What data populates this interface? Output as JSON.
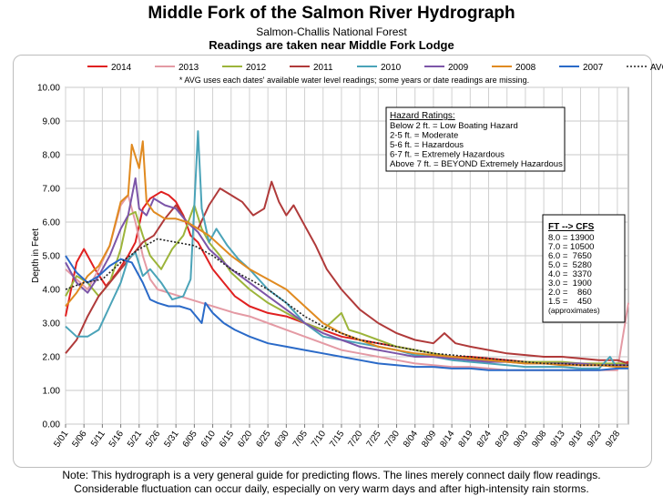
{
  "header": {
    "title": "Middle Fork of the Salmon River Hydrograph",
    "subtitle": "Salmon-Challis National Forest",
    "subtitle2": "Readings are taken near Middle Fork Lodge"
  },
  "notes": {
    "line1": "Note: This hydrograph is a very general guide for predicting flows. The lines merely connect daily flow readings.",
    "line2": "Considerable fluctuation can occur daily, especially on very warm days and after high-intensity rain storms."
  },
  "hazard_box": {
    "title": "Hazard Ratings:",
    "lines": [
      "Below 2 ft. = Low Boating Hazard",
      "2-5 ft. = Moderate",
      "5-6 ft. = Hazardous",
      "6-7 ft. = Extremely Hazardous",
      "Above 7 ft. = BEYOND Extremely Hazardous"
    ]
  },
  "cfs_box": {
    "title": "FT --> CFS",
    "lines": [
      "8.0 = 13900",
      "7.0 = 10500",
      "6.0 =  7650",
      "5.0 =  5280",
      "4.0 =  3370",
      "3.0 =  1900",
      "2.0 =    860",
      "1.5 =    450",
      "(approximates)"
    ]
  },
  "chart_data": {
    "type": "line",
    "ylabel": "Depth in Feet",
    "xlabel": "",
    "ylim": [
      0,
      10
    ],
    "yticks": [
      "0.00",
      "1.00",
      "2.00",
      "3.00",
      "4.00",
      "5.00",
      "6.00",
      "7.00",
      "8.00",
      "9.00",
      "10.00"
    ],
    "xticks": [
      "5/01",
      "5/06",
      "5/11",
      "5/16",
      "5/21",
      "5/26",
      "5/31",
      "6/05",
      "6/10",
      "6/15",
      "6/20",
      "6/25",
      "6/30",
      "7/05",
      "7/10",
      "7/15",
      "7/20",
      "7/25",
      "7/30",
      "8/04",
      "8/09",
      "8/14",
      "8/19",
      "8/24",
      "8/29",
      "9/03",
      "9/08",
      "9/13",
      "9/18",
      "9/23",
      "9/28"
    ],
    "xtick_days": [
      0,
      5,
      10,
      15,
      20,
      25,
      30,
      35,
      40,
      45,
      50,
      55,
      60,
      65,
      70,
      75,
      80,
      85,
      90,
      95,
      100,
      105,
      110,
      115,
      120,
      125,
      130,
      135,
      140,
      145,
      150
    ],
    "x_unit": "days since 5/01",
    "legend_note": "* AVG uses each dates' available water level readings; some years or date readings are missing.",
    "grid": true,
    "legend_position": "top",
    "series": [
      {
        "name": "2014",
        "color": "#e02020",
        "dash": false,
        "x": [
          0,
          3,
          5,
          8,
          11,
          14,
          17,
          19,
          21,
          23,
          26,
          28,
          30,
          32,
          34,
          36,
          38,
          40,
          43,
          46,
          50,
          55,
          60,
          65,
          70,
          75,
          80,
          85,
          90,
          95,
          100,
          105,
          110,
          115,
          120,
          125,
          130,
          135,
          140,
          145,
          150,
          153
        ],
        "y": [
          3.2,
          4.8,
          5.2,
          4.6,
          4.1,
          4.5,
          5.0,
          5.4,
          6.4,
          6.7,
          6.9,
          6.8,
          6.6,
          6.2,
          5.6,
          5.4,
          5.0,
          4.6,
          4.2,
          3.8,
          3.5,
          3.3,
          3.2,
          3.0,
          2.8,
          2.6,
          2.5,
          2.4,
          2.3,
          2.2,
          2.1,
          2.0,
          2.0,
          1.95,
          1.9,
          1.85,
          1.8,
          1.8,
          1.75,
          1.75,
          1.75,
          1.85
        ]
      },
      {
        "name": "2013",
        "color": "#e49aa4",
        "dash": false,
        "x": [
          0,
          3,
          6,
          9,
          12,
          15,
          17,
          19,
          21,
          23,
          25,
          28,
          31,
          34,
          37,
          40,
          43,
          46,
          50,
          55,
          60,
          65,
          70,
          75,
          80,
          85,
          90,
          95,
          100,
          105,
          110,
          115,
          120,
          125,
          130,
          135,
          140,
          145,
          150,
          153
        ],
        "y": [
          4.6,
          4.3,
          4.0,
          4.6,
          5.3,
          6.5,
          6.8,
          6.0,
          5.0,
          4.3,
          4.0,
          3.9,
          3.8,
          3.7,
          3.6,
          3.5,
          3.4,
          3.3,
          3.2,
          3.0,
          2.8,
          2.6,
          2.4,
          2.2,
          2.1,
          2.0,
          1.9,
          1.8,
          1.75,
          1.7,
          1.7,
          1.65,
          1.6,
          1.6,
          1.6,
          1.6,
          1.6,
          1.6,
          1.6,
          3.6
        ]
      },
      {
        "name": "2012",
        "color": "#9cb43a",
        "dash": false,
        "x": [
          0,
          3,
          6,
          9,
          12,
          15,
          17,
          19,
          21,
          23,
          26,
          29,
          32,
          35,
          37,
          39,
          42,
          45,
          50,
          55,
          60,
          65,
          70,
          73,
          75,
          77,
          80,
          85,
          90,
          95,
          100,
          105,
          110,
          115,
          120,
          125,
          130,
          135,
          140,
          145,
          150,
          153
        ],
        "y": [
          3.8,
          4.4,
          4.2,
          3.8,
          4.2,
          5.2,
          6.2,
          6.3,
          5.6,
          5.0,
          4.6,
          5.2,
          5.6,
          6.5,
          5.8,
          5.4,
          5.0,
          4.5,
          4.0,
          3.6,
          3.3,
          3.0,
          2.8,
          3.1,
          3.3,
          2.8,
          2.7,
          2.5,
          2.3,
          2.2,
          2.1,
          2.0,
          1.95,
          1.9,
          1.85,
          1.85,
          1.85,
          1.85,
          1.8,
          1.8,
          1.8,
          1.8
        ]
      },
      {
        "name": "2011",
        "color": "#b03a3a",
        "dash": false,
        "x": [
          0,
          3,
          6,
          9,
          12,
          15,
          18,
          21,
          24,
          27,
          30,
          33,
          36,
          39,
          42,
          45,
          48,
          51,
          54,
          56,
          58,
          60,
          62,
          65,
          68,
          71,
          75,
          80,
          85,
          90,
          95,
          100,
          103,
          106,
          110,
          115,
          120,
          125,
          130,
          135,
          140,
          145,
          150,
          153
        ],
        "y": [
          2.1,
          2.5,
          3.2,
          3.8,
          4.2,
          4.6,
          5.0,
          5.4,
          5.6,
          6.1,
          6.5,
          6.0,
          5.8,
          6.5,
          7.0,
          6.8,
          6.6,
          6.2,
          6.4,
          7.2,
          6.6,
          6.2,
          6.5,
          5.9,
          5.3,
          4.6,
          4.0,
          3.4,
          3.0,
          2.7,
          2.5,
          2.4,
          2.7,
          2.4,
          2.3,
          2.2,
          2.1,
          2.05,
          2.0,
          2.0,
          1.95,
          1.9,
          1.9,
          1.8
        ]
      },
      {
        "name": "2010",
        "color": "#4aa3b8",
        "dash": false,
        "x": [
          0,
          3,
          6,
          9,
          12,
          15,
          17,
          19,
          21,
          23,
          26,
          29,
          32,
          34,
          35,
          36,
          37,
          39,
          41,
          44,
          47,
          50,
          55,
          60,
          65,
          70,
          75,
          80,
          85,
          90,
          95,
          100,
          105,
          110,
          115,
          120,
          125,
          130,
          135,
          140,
          145,
          148,
          150,
          153
        ],
        "y": [
          2.9,
          2.6,
          2.6,
          2.8,
          3.5,
          4.2,
          4.9,
          5.1,
          4.4,
          4.6,
          4.2,
          3.7,
          3.8,
          4.3,
          6.5,
          8.7,
          6.4,
          5.4,
          5.8,
          5.3,
          4.9,
          4.6,
          4.0,
          3.6,
          3.0,
          2.6,
          2.5,
          2.4,
          2.3,
          2.2,
          2.05,
          2.0,
          1.9,
          1.85,
          1.8,
          1.75,
          1.7,
          1.7,
          1.7,
          1.65,
          1.65,
          2.0,
          1.65,
          1.7
        ]
      },
      {
        "name": "2009",
        "color": "#7c55a8",
        "dash": false,
        "x": [
          0,
          3,
          6,
          9,
          12,
          15,
          17,
          19,
          20,
          22,
          24,
          27,
          30,
          33,
          36,
          39,
          42,
          45,
          50,
          55,
          60,
          65,
          70,
          75,
          80,
          85,
          90,
          95,
          100,
          105,
          110,
          115,
          120,
          125,
          130,
          135,
          140,
          145,
          150,
          153
        ],
        "y": [
          4.8,
          4.2,
          3.9,
          4.4,
          5.0,
          5.8,
          6.2,
          7.3,
          6.4,
          6.2,
          6.7,
          6.5,
          6.4,
          6.0,
          5.7,
          5.2,
          4.9,
          4.6,
          4.2,
          3.8,
          3.4,
          3.0,
          2.7,
          2.5,
          2.3,
          2.2,
          2.1,
          2.0,
          2.0,
          1.95,
          1.9,
          1.85,
          1.85,
          1.8,
          1.8,
          1.8,
          1.8,
          1.75,
          1.75,
          1.75
        ]
      },
      {
        "name": "2008",
        "color": "#e08a20",
        "dash": false,
        "x": [
          0,
          3,
          6,
          9,
          12,
          15,
          17,
          18,
          20,
          21,
          22,
          24,
          27,
          30,
          33,
          36,
          39,
          42,
          45,
          50,
          55,
          60,
          65,
          70,
          75,
          80,
          85,
          90,
          95,
          100,
          105,
          110,
          115,
          120,
          125,
          130,
          135,
          140,
          145,
          150,
          153
        ],
        "y": [
          3.5,
          3.9,
          4.4,
          4.7,
          5.3,
          6.6,
          6.8,
          8.3,
          7.6,
          8.4,
          6.6,
          6.3,
          6.1,
          6.1,
          6.0,
          5.8,
          5.6,
          5.3,
          5.0,
          4.6,
          4.3,
          4.0,
          3.5,
          3.0,
          2.7,
          2.5,
          2.3,
          2.2,
          2.1,
          2.05,
          2.0,
          1.95,
          1.9,
          1.85,
          1.8,
          1.8,
          1.75,
          1.75,
          1.75,
          1.7,
          1.7
        ]
      },
      {
        "name": "2007",
        "color": "#2a6ac8",
        "dash": false,
        "x": [
          0,
          3,
          6,
          9,
          12,
          15,
          18,
          21,
          23,
          25,
          28,
          31,
          34,
          37,
          38,
          40,
          43,
          46,
          50,
          55,
          60,
          65,
          70,
          75,
          80,
          85,
          90,
          95,
          100,
          105,
          110,
          115,
          120,
          125,
          130,
          135,
          140,
          145,
          150,
          153
        ],
        "y": [
          5.0,
          4.5,
          4.2,
          4.4,
          4.7,
          4.9,
          4.8,
          4.2,
          3.7,
          3.6,
          3.5,
          3.5,
          3.4,
          3.0,
          3.6,
          3.3,
          3.0,
          2.8,
          2.6,
          2.4,
          2.3,
          2.2,
          2.1,
          2.0,
          1.9,
          1.8,
          1.75,
          1.7,
          1.7,
          1.65,
          1.65,
          1.6,
          1.6,
          1.6,
          1.6,
          1.6,
          1.6,
          1.6,
          1.65,
          1.65
        ]
      },
      {
        "name": "AVG*",
        "color": "#222222",
        "dash": true,
        "x": [
          0,
          5,
          10,
          15,
          20,
          25,
          30,
          35,
          40,
          45,
          50,
          55,
          60,
          65,
          70,
          75,
          80,
          85,
          90,
          95,
          100,
          105,
          110,
          115,
          120,
          125,
          130,
          135,
          140,
          145,
          150,
          153
        ],
        "y": [
          4.0,
          4.2,
          4.3,
          4.8,
          5.2,
          5.5,
          5.4,
          5.3,
          5.0,
          4.6,
          4.3,
          4.0,
          3.6,
          3.2,
          2.9,
          2.7,
          2.5,
          2.4,
          2.3,
          2.2,
          2.1,
          2.05,
          2.0,
          1.95,
          1.9,
          1.85,
          1.8,
          1.8,
          1.75,
          1.75,
          1.75,
          1.75
        ]
      }
    ]
  }
}
